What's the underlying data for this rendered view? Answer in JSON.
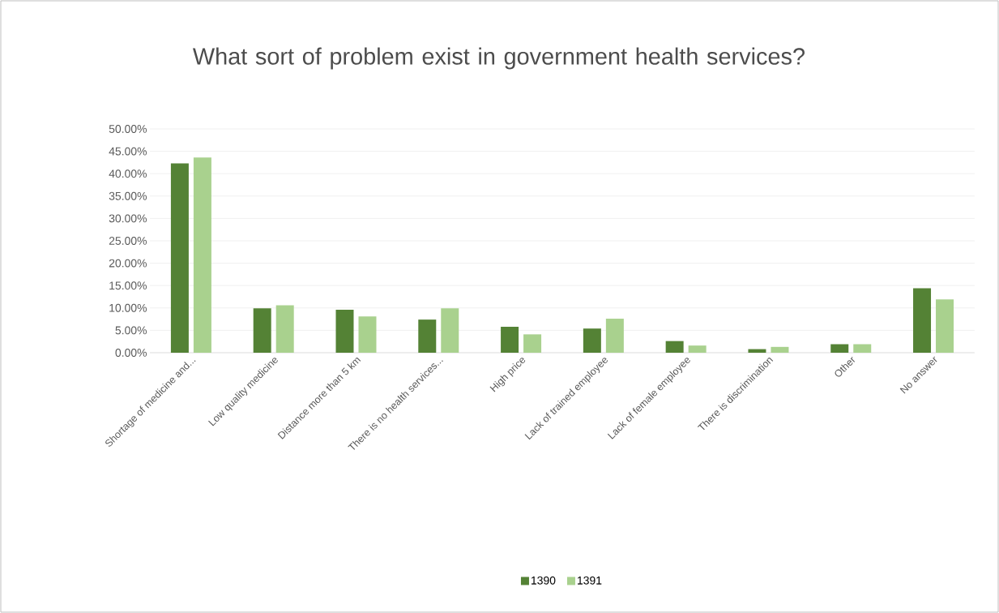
{
  "chart_data": {
    "type": "bar",
    "title": "What sort of problem exist in government health services?",
    "categories": [
      "Shortage of medicine and...",
      "Low quality medicine",
      "Distance more than 5 km",
      "There is no health services...",
      "High price",
      "Lack of trained employee",
      "Lack of female employee",
      "There is discrimination",
      "Other",
      "No answer"
    ],
    "series": [
      {
        "name": "1390",
        "color": "#548235",
        "values": [
          42.3,
          9.9,
          9.6,
          7.4,
          5.8,
          5.4,
          2.6,
          0.8,
          1.9,
          14.4
        ]
      },
      {
        "name": "1391",
        "color": "#a9d18e",
        "values": [
          43.6,
          10.6,
          8.1,
          9.9,
          4.1,
          7.6,
          1.6,
          1.3,
          1.9,
          11.9
        ]
      }
    ],
    "ylim": [
      0,
      50
    ],
    "yticks": [
      {
        "value": 0,
        "label": "0.00%"
      },
      {
        "value": 5,
        "label": "5.00%"
      },
      {
        "value": 10,
        "label": "10.00%"
      },
      {
        "value": 15,
        "label": "15.00%"
      },
      {
        "value": 20,
        "label": "20.00%"
      },
      {
        "value": 25,
        "label": "25.00%"
      },
      {
        "value": 30,
        "label": "30.00%"
      },
      {
        "value": 35,
        "label": "35.00%"
      },
      {
        "value": 40,
        "label": "40.00%"
      },
      {
        "value": 45,
        "label": "45.00%"
      },
      {
        "value": 50,
        "label": "50.00%"
      }
    ],
    "grid": "y",
    "legend": "bottom"
  }
}
